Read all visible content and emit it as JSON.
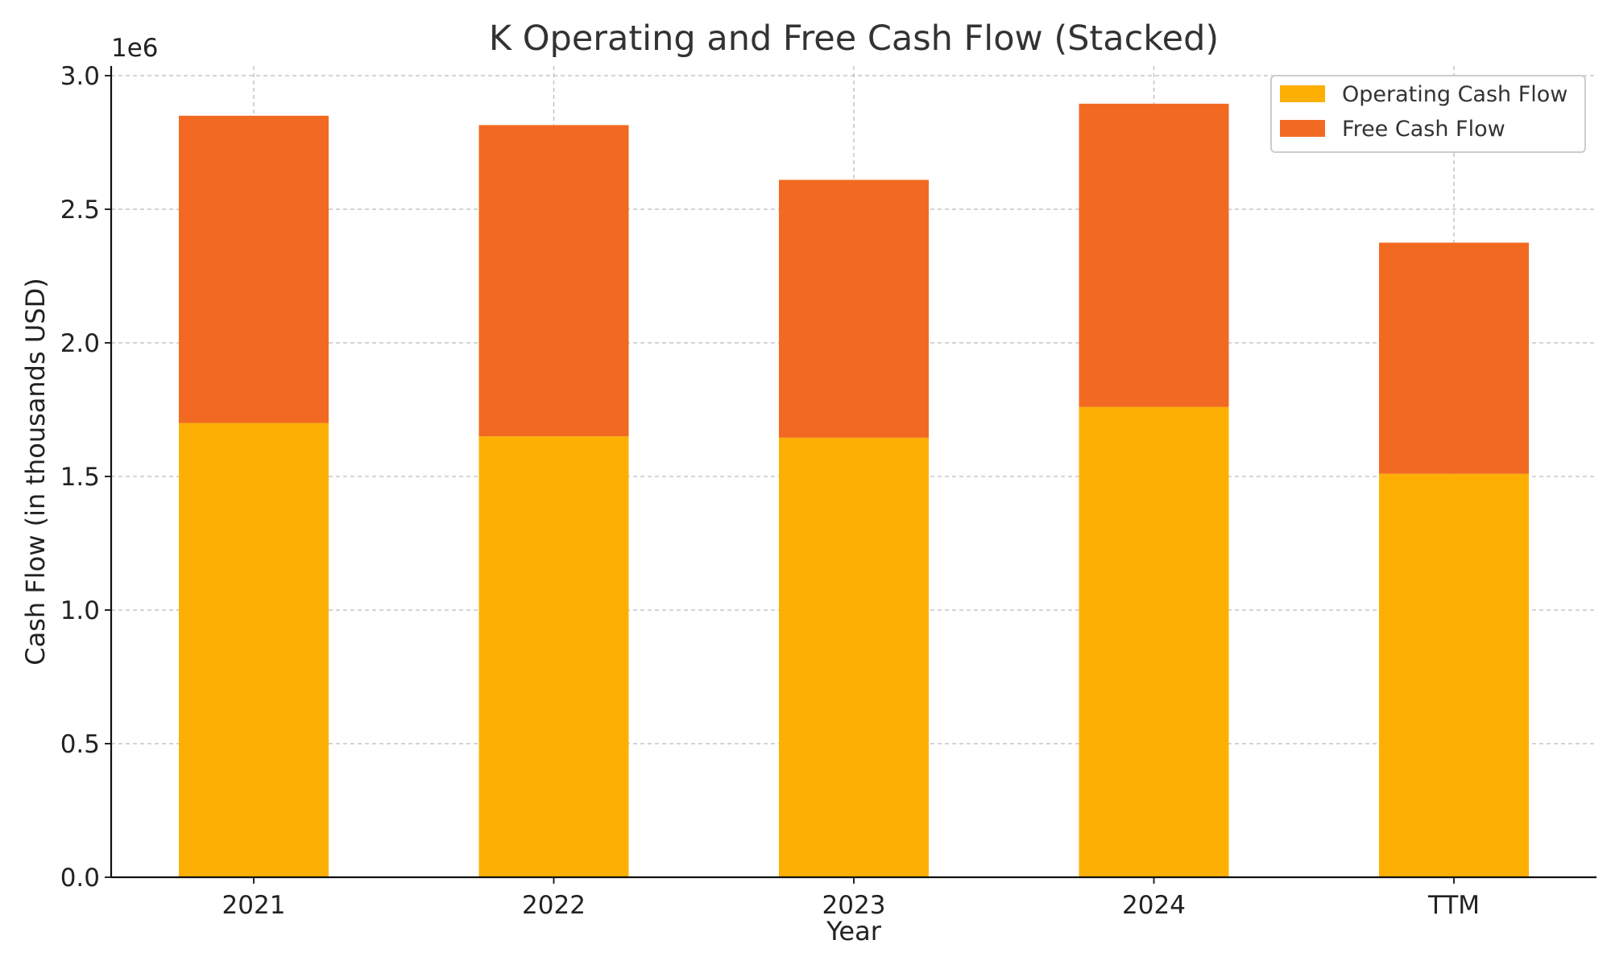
{
  "chart_data": {
    "type": "bar",
    "stacked": true,
    "title": "K Operating and Free Cash Flow (Stacked)",
    "xlabel": "Year",
    "ylabel": "Cash Flow (in thousands USD)",
    "y_scale_label": "1e6",
    "categories": [
      "2021",
      "2022",
      "2023",
      "2024",
      "TTM"
    ],
    "ylim": [
      0,
      3000000
    ],
    "yticks": [
      0,
      500000,
      1000000,
      1500000,
      2000000,
      2500000,
      3000000
    ],
    "ytick_labels": [
      "0.0",
      "0.5",
      "1.0",
      "1.5",
      "2.0",
      "2.5",
      "3.0"
    ],
    "grid": true,
    "legend_position": "top-right",
    "series": [
      {
        "name": "Operating Cash Flow",
        "color": "#FDB003",
        "values": [
          1700000,
          1650000,
          1645000,
          1760000,
          1510000
        ]
      },
      {
        "name": "Free Cash Flow",
        "color": "#F26A21",
        "values": [
          1150000,
          1165000,
          965000,
          1135000,
          865000
        ]
      }
    ]
  }
}
